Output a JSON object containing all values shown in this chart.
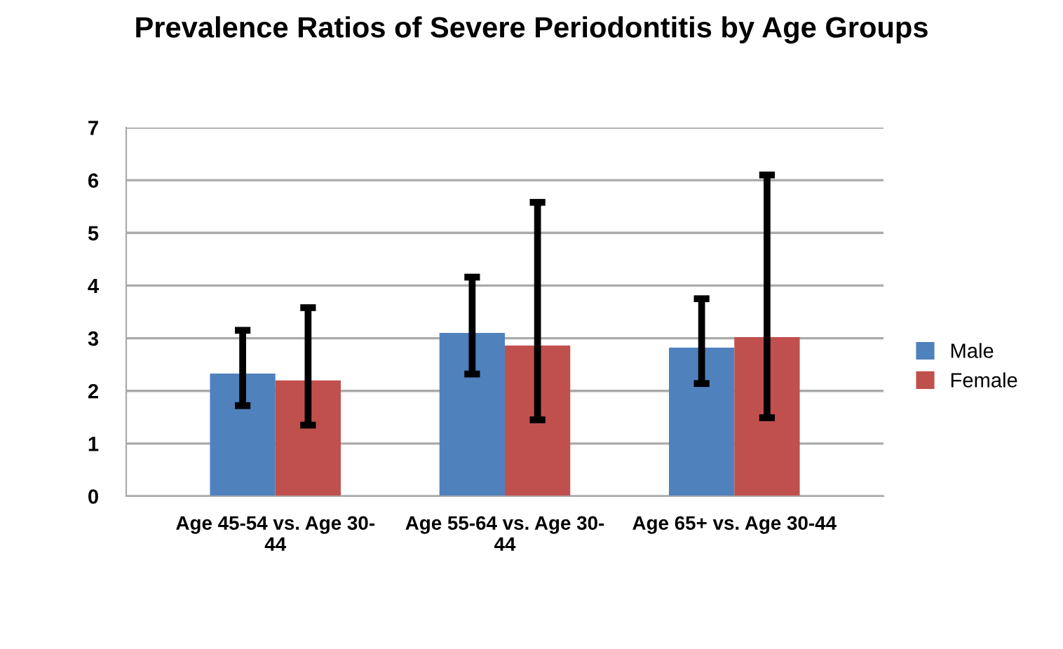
{
  "chart_data": {
    "type": "bar",
    "title": "Prevalence Ratios of Severe Periodontitis by Age Groups",
    "categories": [
      "Age 45-54 vs. Age 30-\n44",
      "Age 55-64 vs. Age 30-\n44",
      "Age 65+ vs. Age 30-44"
    ],
    "series": [
      {
        "name": "Male",
        "color": "#4f81bd",
        "values": [
          2.33,
          3.1,
          2.82
        ],
        "errors": [
          [
            1.72,
            3.15
          ],
          [
            2.32,
            4.16
          ],
          [
            2.14,
            3.75
          ]
        ]
      },
      {
        "name": "Female",
        "color": "#c0504d",
        "values": [
          2.2,
          2.86,
          3.02
        ],
        "errors": [
          [
            1.35,
            3.58
          ],
          [
            1.45,
            5.58
          ],
          [
            1.49,
            6.1
          ]
        ]
      }
    ],
    "ylim": [
      0,
      7
    ],
    "yticks": [
      0,
      1,
      2,
      3,
      4,
      5,
      6,
      7
    ],
    "grid": "y",
    "legend": "right"
  }
}
